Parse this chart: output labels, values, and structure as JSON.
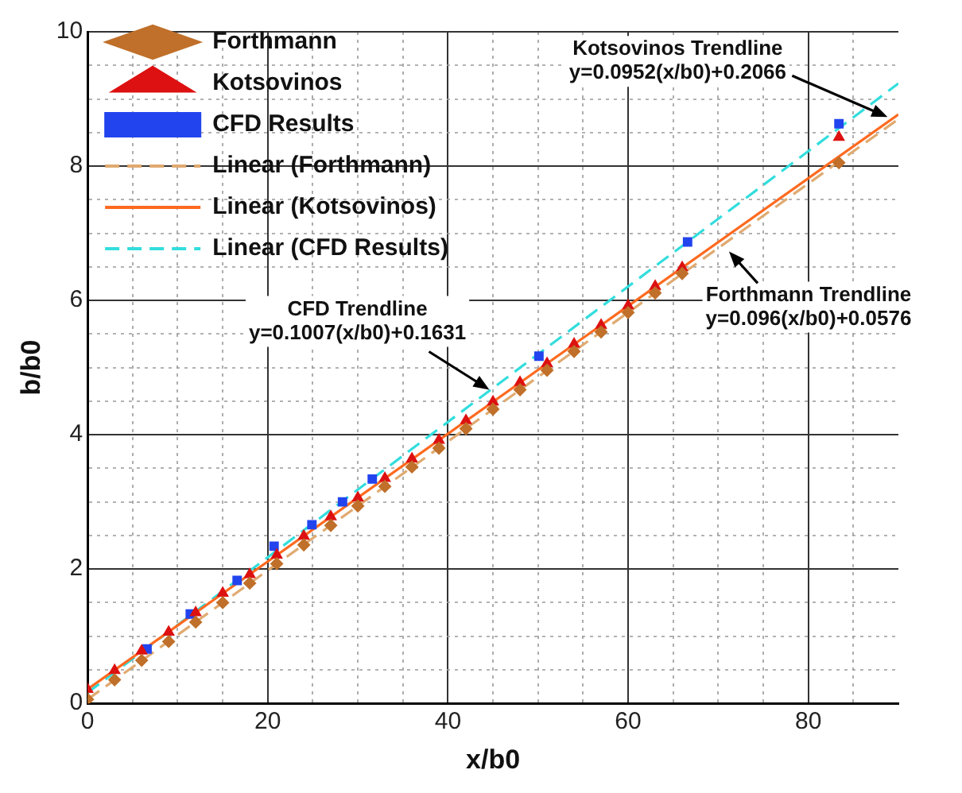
{
  "chart_data": {
    "type": "scatter",
    "xlabel": "x/b0",
    "ylabel": "b/b0",
    "xlim": [
      0,
      90
    ],
    "ylim": [
      0,
      10
    ],
    "xticks": [
      0,
      {
        "value": 5,
        "label": null
      },
      {
        "value": 10,
        "label": null
      },
      {
        "value": 15,
        "label": null
      },
      20,
      {
        "value": 25,
        "label": null
      },
      {
        "value": 30,
        "label": null
      },
      {
        "value": 35,
        "label": null
      },
      40,
      {
        "value": 45,
        "label": null
      },
      {
        "value": 50,
        "label": null
      },
      {
        "value": 55,
        "label": null
      },
      60,
      {
        "value": 65,
        "label": null
      },
      {
        "value": 70,
        "label": null
      },
      {
        "value": 75,
        "label": null
      },
      80,
      {
        "value": 85,
        "label": null
      }
    ],
    "yticks": [
      0,
      {
        "value": 0.5,
        "label": null
      },
      {
        "value": 1,
        "label": null
      },
      {
        "value": 1.5,
        "label": null
      },
      2,
      {
        "value": 2.5,
        "label": null
      },
      {
        "value": 3,
        "label": null
      },
      {
        "value": 3.5,
        "label": null
      },
      4,
      {
        "value": 4.5,
        "label": null
      },
      {
        "value": 5,
        "label": null
      },
      {
        "value": 5.5,
        "label": null
      },
      6,
      {
        "value": 6.5,
        "label": null
      },
      {
        "value": 7,
        "label": null
      },
      {
        "value": 7.5,
        "label": null
      },
      8,
      {
        "value": 8.5,
        "label": null
      },
      {
        "value": 9,
        "label": null
      },
      {
        "value": 9.5,
        "label": null
      },
      10
    ],
    "grid": true,
    "legend": "top left",
    "series": [
      {
        "name": "Forthmann",
        "marker": "diamond",
        "color": "#c0702a",
        "x": [
          0,
          3,
          6,
          9,
          12,
          15,
          18,
          21,
          24,
          27,
          30,
          33,
          36,
          39,
          42,
          45,
          48,
          51,
          54,
          57,
          60,
          63,
          66,
          83.4
        ],
        "values": [
          0.06,
          0.35,
          0.64,
          0.92,
          1.21,
          1.5,
          1.79,
          2.08,
          2.36,
          2.65,
          2.94,
          3.23,
          3.52,
          3.8,
          4.09,
          4.38,
          4.67,
          4.96,
          5.24,
          5.53,
          5.82,
          6.11,
          6.4,
          8.05
        ]
      },
      {
        "name": "Kotsovinos",
        "marker": "triangle",
        "color": "#dd1111",
        "x": [
          0,
          3,
          6,
          9,
          12,
          15,
          18,
          21,
          24,
          27,
          30,
          33,
          36,
          39,
          42,
          45,
          48,
          51,
          54,
          57,
          60,
          63,
          66,
          83.4
        ],
        "values": [
          0.21,
          0.49,
          0.78,
          1.06,
          1.35,
          1.64,
          1.92,
          2.21,
          2.49,
          2.78,
          3.06,
          3.35,
          3.64,
          3.92,
          4.21,
          4.49,
          4.78,
          5.06,
          5.35,
          5.63,
          5.92,
          6.21,
          6.49,
          8.43
        ]
      },
      {
        "name": "CFD Results",
        "marker": "square",
        "color": "#2244ee",
        "x": [
          6.6,
          11.4,
          16.6,
          20.7,
          24.9,
          28.3,
          31.6,
          50.1,
          66.6,
          83.4
        ],
        "values": [
          0.81,
          1.33,
          1.83,
          2.34,
          2.66,
          3.0,
          3.34,
          5.17,
          6.87,
          8.63
        ]
      },
      {
        "name": "Linear (Forthmann)",
        "type": "line",
        "marker": "none",
        "line_style": "dashed",
        "color": "#e0aa70",
        "x": [
          0,
          90
        ],
        "values": [
          0.06,
          8.7
        ]
      },
      {
        "name": "Linear (Kotsovinos)",
        "type": "line",
        "marker": "none",
        "line_style": "solid",
        "color": "#ff6a20",
        "x": [
          0,
          90
        ],
        "values": [
          0.21,
          8.77
        ]
      },
      {
        "name": "Linear (CFD Results)",
        "type": "line",
        "marker": "none",
        "line_style": "dashed",
        "color": "#33dddd",
        "x": [
          0,
          90
        ],
        "values": [
          0.16,
          9.23
        ]
      }
    ],
    "annotations": [
      {
        "text": "Kotsovinos Trendline\ny=0.0952(x/b0)+0.2066",
        "x": 88.8,
        "y": 8.73
      },
      {
        "text": "CFD Trendline\ny=0.1007(x/b0)+0.1631",
        "x": 44.6,
        "y": 4.67
      },
      {
        "text": "Forthmann Trendline\ny=0.096(x/b0)+0.0576",
        "x": 71.2,
        "y": 6.73
      }
    ]
  }
}
